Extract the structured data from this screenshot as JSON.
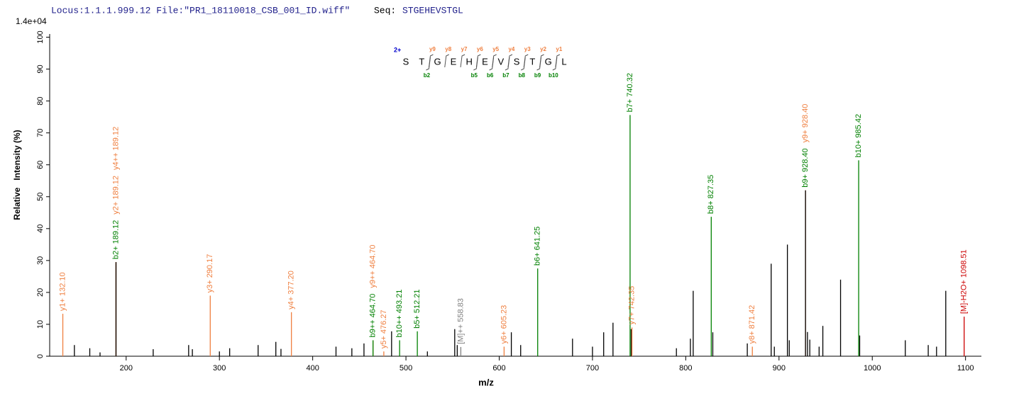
{
  "chart_data": {
    "type": "spectrum",
    "header_locus_file": "Locus:1.1.1.999.12 File:\"PR1_18110018_CSB_001_ID.wiff\"",
    "header_seq_label": "Seq:",
    "header_seq": "STGEHEVSTGL",
    "intensity_scale_label": "1.4e+04",
    "x_label": "m/z",
    "y_label": "Relative   Intensity (%)",
    "xlim": [
      118,
      1117
    ],
    "ylim": [
      0,
      101
    ],
    "xticks": [
      200,
      300,
      400,
      500,
      600,
      700,
      800,
      900,
      1000,
      1100
    ],
    "yticks": [
      0,
      10,
      20,
      30,
      40,
      50,
      60,
      70,
      80,
      90,
      100
    ],
    "sequence": {
      "charge": "2+",
      "residues": [
        "S",
        "T",
        "G",
        "E",
        "H",
        "E",
        "V",
        "S",
        "T",
        "G",
        "L"
      ],
      "y_ions": [
        "y9",
        "y8",
        "y7",
        "y6",
        "y5",
        "y4",
        "y3",
        "y2",
        "y1"
      ],
      "b_ions": [
        "b2",
        "b5",
        "b6",
        "b7",
        "b8",
        "b9",
        "b10"
      ]
    },
    "x": [
      132.1,
      189.12,
      189.12,
      189.12,
      290.17,
      377.2,
      464.7,
      464.7,
      476.27,
      493.21,
      512.21,
      558.83,
      605.23,
      641.25,
      740.32,
      742.35,
      827.35,
      871.42,
      928.4,
      928.4,
      985.42,
      1098.51,
      144.5,
      161,
      172,
      229,
      267,
      271,
      300,
      311,
      341.5,
      360.5,
      366,
      425,
      442,
      455,
      484.6,
      523,
      552.3,
      555,
      613,
      623,
      678.6,
      700,
      712,
      722,
      741.5,
      790,
      805,
      808,
      829,
      866,
      891.6,
      895,
      909,
      911,
      930.5,
      933,
      943,
      947,
      966,
      986.5,
      1035.4,
      1060,
      1068.9,
      1078.8
    ],
    "values": [
      13.3,
      29.5,
      29.5,
      29.5,
      19.0,
      13.8,
      5.0,
      5.0,
      1.5,
      5.0,
      7.8,
      2.9,
      3.0,
      27.5,
      75.6,
      9.0,
      43.7,
      3.0,
      52.0,
      52.0,
      61.4,
      12.4,
      3.5,
      2.5,
      1.2,
      2.2,
      3.5,
      2.2,
      1.5,
      2.5,
      3.5,
      4.5,
      2.3,
      3,
      2.5,
      4,
      7.8,
      1.5,
      8.5,
      3.5,
      7.5,
      3.5,
      5.5,
      3,
      7.5,
      10.5,
      8.5,
      2.5,
      5.5,
      20.5,
      7.5,
      4,
      29,
      3,
      35,
      5,
      7.6,
      5.2,
      3,
      9.5,
      24,
      6.5,
      5,
      3.5,
      3,
      20.5
    ],
    "labels": [
      "y1+ 132.10",
      "b2+ 189.12",
      "y2+ 189.12",
      "y4++ 189.12",
      "y3+ 290.17",
      "y4+ 377.20",
      "b9++ 464.70",
      "y9++ 464.70",
      "y5+ 476.27",
      "b10++ 493.21",
      "b5+ 512.21",
      "[M]++ 558.83",
      "y6+ 605.23",
      "b6+ 641.25",
      "b7+ 740.32",
      "y7+ 742.35",
      "b8+ 827.35",
      "y8+ 871.42",
      "b9+ 928.40",
      "y9+ 928.40",
      "b10+ 985.42",
      "[M]-H2O+ 1098.51",
      null,
      null,
      null,
      null,
      null,
      null,
      null,
      null,
      null,
      null,
      null,
      null,
      null,
      null,
      null,
      null,
      null,
      null,
      null,
      null,
      null,
      null,
      null,
      null,
      null,
      null,
      null,
      null,
      null,
      null,
      null,
      null,
      null,
      null,
      null,
      null,
      null,
      null,
      null,
      null,
      null,
      null,
      null,
      null
    ],
    "colors": [
      "#ef7f3f",
      "#000000",
      "#ef7f3f",
      "#ef7f3f",
      "#ef7f3f",
      "#ef7f3f",
      "#008000",
      "#ef7f3f",
      "#ef7f3f",
      "#008000",
      "#008000",
      "#808080",
      "#ef7f3f",
      "#008000",
      "#008000",
      "#ef7f3f",
      "#008000",
      "#ef7f3f",
      "#000000",
      "#ef7f3f",
      "#008000",
      "#cc0000",
      "#000000",
      "#000000",
      "#000000",
      "#000000",
      "#000000",
      "#000000",
      "#000000",
      "#000000",
      "#000000",
      "#000000",
      "#000000",
      "#000000",
      "#000000",
      "#000000",
      "#000000",
      "#000000",
      "#000000",
      "#000000",
      "#000000",
      "#000000",
      "#000000",
      "#000000",
      "#000000",
      "#000000",
      "#000000",
      "#000000",
      "#000000",
      "#000000",
      "#000000",
      "#000000",
      "#000000",
      "#000000",
      "#000000",
      "#000000",
      "#000000",
      "#000000",
      "#000000",
      "#000000",
      "#000000",
      "#000000",
      "#000000",
      "#000000",
      "#000000",
      "#000000"
    ],
    "label_colors": [
      "#ef7f3f",
      "#008000",
      "#ef7f3f",
      "#ef7f3f",
      "#ef7f3f",
      "#ef7f3f",
      "#008000",
      "#ef7f3f",
      "#ef7f3f",
      "#008000",
      "#008000",
      "#808080",
      "#ef7f3f",
      "#008000",
      "#008000",
      "#ef7f3f",
      "#008000",
      "#ef7f3f",
      "#008000",
      "#ef7f3f",
      "#008000",
      "#cc0000",
      null,
      null,
      null,
      null,
      null,
      null,
      null,
      null,
      null,
      null,
      null,
      null,
      null,
      null,
      null,
      null,
      null,
      null,
      null,
      null,
      null,
      null,
      null,
      null,
      null,
      null,
      null,
      null,
      null,
      null,
      null,
      null,
      null,
      null,
      null,
      null,
      null,
      null,
      null,
      null,
      null,
      null,
      null,
      null
    ]
  }
}
